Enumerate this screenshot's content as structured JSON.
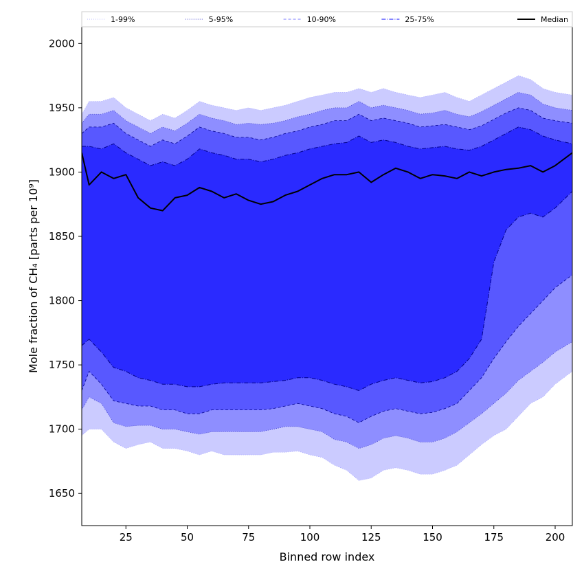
{
  "chart_data": {
    "type": "area",
    "title": "",
    "xlabel": "Binned row index",
    "ylabel": "Mole fraction of CH₄ [parts per 10⁹]",
    "xlim": [
      7,
      207
    ],
    "ylim": [
      1625,
      2013
    ],
    "xticks": [
      25,
      50,
      75,
      100,
      125,
      150,
      175,
      200
    ],
    "yticks": [
      1650,
      1700,
      1750,
      1800,
      1850,
      1900,
      1950,
      2000
    ],
    "grid": false,
    "legend_position": "top",
    "colors": {
      "band_outer": "#cbcbff",
      "band_5_95": "#8e8eff",
      "band_10_90": "#5858ff",
      "band_25_75": "#2a2aff",
      "median": "#000000",
      "edge": "#00008b"
    },
    "legend": [
      {
        "label": "1-99%",
        "style": "dotted-light"
      },
      {
        "label": "5-95%",
        "style": "dotted"
      },
      {
        "label": "10-90%",
        "style": "dashed-light"
      },
      {
        "label": "25-75%",
        "style": "dashdot"
      },
      {
        "label": "Median",
        "style": "solid"
      }
    ],
    "x": [
      7,
      10,
      15,
      20,
      25,
      30,
      35,
      40,
      45,
      50,
      55,
      60,
      65,
      70,
      75,
      80,
      85,
      90,
      95,
      100,
      105,
      110,
      115,
      120,
      125,
      130,
      135,
      140,
      145,
      150,
      155,
      160,
      165,
      170,
      175,
      180,
      185,
      190,
      195,
      200,
      207
    ],
    "series": [
      {
        "name": "1-99%",
        "upper": [
          1945,
          1955,
          1955,
          1958,
          1950,
          1945,
          1940,
          1945,
          1942,
          1948,
          1955,
          1952,
          1950,
          1948,
          1950,
          1948,
          1950,
          1952,
          1955,
          1958,
          1960,
          1962,
          1962,
          1965,
          1962,
          1965,
          1962,
          1960,
          1958,
          1960,
          1962,
          1958,
          1955,
          1960,
          1965,
          1970,
          1975,
          1972,
          1965,
          1962,
          1960
        ],
        "lower": [
          1695,
          1700,
          1700,
          1690,
          1685,
          1688,
          1690,
          1685,
          1685,
          1683,
          1680,
          1683,
          1680,
          1680,
          1680,
          1680,
          1682,
          1682,
          1683,
          1680,
          1678,
          1672,
          1668,
          1660,
          1662,
          1668,
          1670,
          1668,
          1665,
          1665,
          1668,
          1672,
          1680,
          1688,
          1695,
          1700,
          1710,
          1720,
          1725,
          1735,
          1745
        ]
      },
      {
        "name": "5-95%",
        "upper": [
          1938,
          1945,
          1945,
          1948,
          1940,
          1935,
          1930,
          1935,
          1932,
          1938,
          1945,
          1942,
          1940,
          1937,
          1938,
          1937,
          1938,
          1940,
          1943,
          1945,
          1948,
          1950,
          1950,
          1955,
          1950,
          1952,
          1950,
          1948,
          1945,
          1946,
          1948,
          1945,
          1943,
          1947,
          1952,
          1957,
          1962,
          1960,
          1953,
          1950,
          1948
        ],
        "lower": [
          1715,
          1725,
          1720,
          1705,
          1702,
          1703,
          1703,
          1700,
          1700,
          1698,
          1696,
          1698,
          1698,
          1698,
          1698,
          1698,
          1700,
          1702,
          1702,
          1700,
          1698,
          1692,
          1690,
          1685,
          1688,
          1693,
          1695,
          1693,
          1690,
          1690,
          1693,
          1698,
          1705,
          1712,
          1720,
          1728,
          1738,
          1745,
          1752,
          1760,
          1768
        ]
      },
      {
        "name": "10-90%",
        "upper": [
          1930,
          1935,
          1935,
          1938,
          1930,
          1925,
          1920,
          1925,
          1922,
          1928,
          1935,
          1932,
          1930,
          1927,
          1927,
          1925,
          1927,
          1930,
          1932,
          1935,
          1937,
          1940,
          1940,
          1945,
          1940,
          1942,
          1940,
          1938,
          1935,
          1936,
          1937,
          1935,
          1933,
          1936,
          1941,
          1946,
          1950,
          1948,
          1942,
          1940,
          1938
        ],
        "lower": [
          1730,
          1745,
          1735,
          1722,
          1720,
          1718,
          1718,
          1715,
          1715,
          1712,
          1712,
          1715,
          1715,
          1715,
          1715,
          1715,
          1716,
          1718,
          1720,
          1718,
          1716,
          1712,
          1710,
          1705,
          1710,
          1714,
          1716,
          1714,
          1712,
          1713,
          1716,
          1720,
          1730,
          1740,
          1755,
          1768,
          1780,
          1790,
          1800,
          1810,
          1820
        ]
      },
      {
        "name": "25-75%",
        "upper": [
          1920,
          1920,
          1918,
          1922,
          1915,
          1910,
          1905,
          1908,
          1905,
          1910,
          1918,
          1915,
          1913,
          1910,
          1910,
          1908,
          1910,
          1913,
          1915,
          1918,
          1920,
          1922,
          1923,
          1928,
          1923,
          1925,
          1923,
          1920,
          1918,
          1919,
          1920,
          1918,
          1917,
          1920,
          1925,
          1930,
          1935,
          1933,
          1928,
          1925,
          1922
        ],
        "lower": [
          1765,
          1770,
          1760,
          1748,
          1745,
          1740,
          1738,
          1735,
          1735,
          1733,
          1733,
          1735,
          1736,
          1736,
          1736,
          1736,
          1737,
          1738,
          1740,
          1740,
          1738,
          1735,
          1733,
          1730,
          1735,
          1738,
          1740,
          1738,
          1736,
          1737,
          1740,
          1745,
          1755,
          1770,
          1830,
          1855,
          1865,
          1868,
          1865,
          1872,
          1885
        ]
      },
      {
        "name": "Median",
        "values": [
          1915,
          1890,
          1900,
          1895,
          1898,
          1880,
          1872,
          1870,
          1880,
          1882,
          1888,
          1885,
          1880,
          1883,
          1878,
          1875,
          1877,
          1882,
          1885,
          1890,
          1895,
          1898,
          1898,
          1900,
          1892,
          1898,
          1903,
          1900,
          1895,
          1898,
          1897,
          1895,
          1900,
          1897,
          1900,
          1902,
          1903,
          1905,
          1900,
          1905,
          1915
        ]
      }
    ]
  }
}
